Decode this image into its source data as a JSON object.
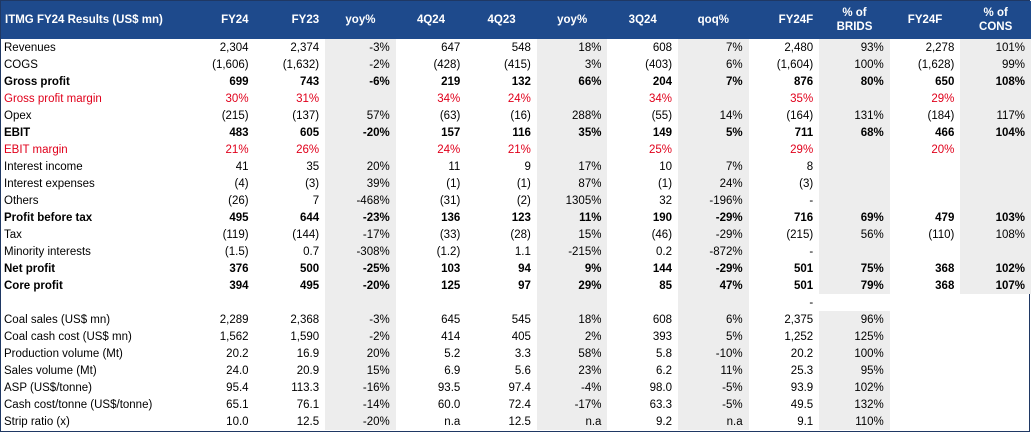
{
  "header": {
    "title": "ITMG FY24 Results (US$ mn)",
    "columns": [
      "FY24",
      "FY23",
      "yoy%",
      "4Q24",
      "4Q23",
      "yoy%",
      "3Q24",
      "qoq%",
      "FY24F",
      "% of BRIDS",
      "FY24F",
      "% of CONS"
    ]
  },
  "rows": [
    {
      "label": "Revenues",
      "style": "normal",
      "values": [
        "2,304",
        "2,374",
        "-3%",
        "647",
        "548",
        "18%",
        "608",
        "7%",
        "2,480",
        "93%",
        "2,278",
        "101%"
      ]
    },
    {
      "label": "COGS",
      "style": "normal",
      "values": [
        "(1,606)",
        "(1,632)",
        "-2%",
        "(428)",
        "(415)",
        "3%",
        "(403)",
        "6%",
        "(1,604)",
        "100%",
        "(1,628)",
        "99%"
      ]
    },
    {
      "label": "Gross profit",
      "style": "bold",
      "values": [
        "699",
        "743",
        "-6%",
        "219",
        "132",
        "66%",
        "204",
        "7%",
        "876",
        "80%",
        "650",
        "108%"
      ]
    },
    {
      "label": "Gross profit margin",
      "style": "red",
      "values": [
        "30%",
        "31%",
        "",
        "34%",
        "24%",
        "",
        "34%",
        "",
        "35%",
        "",
        "29%",
        ""
      ]
    },
    {
      "label": "Opex",
      "style": "normal",
      "values": [
        "(215)",
        "(137)",
        "57%",
        "(63)",
        "(16)",
        "288%",
        "(55)",
        "14%",
        "(164)",
        "131%",
        "(184)",
        "117%"
      ]
    },
    {
      "label": "EBIT",
      "style": "bold",
      "values": [
        "483",
        "605",
        "-20%",
        "157",
        "116",
        "35%",
        "149",
        "5%",
        "711",
        "68%",
        "466",
        "104%"
      ]
    },
    {
      "label": "EBIT margin",
      "style": "red",
      "values": [
        "21%",
        "26%",
        "",
        "24%",
        "21%",
        "",
        "25%",
        "",
        "29%",
        "",
        "20%",
        ""
      ]
    },
    {
      "label": "Interest income",
      "style": "normal",
      "values": [
        "41",
        "35",
        "20%",
        "11",
        "9",
        "17%",
        "10",
        "7%",
        "8",
        "",
        "",
        ""
      ]
    },
    {
      "label": "Interest expenses",
      "style": "normal",
      "values": [
        "(4)",
        "(3)",
        "39%",
        "(1)",
        "(1)",
        "87%",
        "(1)",
        "24%",
        "(3)",
        "",
        "",
        ""
      ]
    },
    {
      "label": "Others",
      "style": "normal",
      "values": [
        "(26)",
        "7",
        "-468%",
        "(31)",
        "(2)",
        "1305%",
        "32",
        "-196%",
        "-",
        "",
        "",
        ""
      ]
    },
    {
      "label": "Profit before tax",
      "style": "bold",
      "values": [
        "495",
        "644",
        "-23%",
        "136",
        "123",
        "11%",
        "190",
        "-29%",
        "716",
        "69%",
        "479",
        "103%"
      ]
    },
    {
      "label": "Tax",
      "style": "normal",
      "values": [
        "(119)",
        "(144)",
        "-17%",
        "(33)",
        "(28)",
        "15%",
        "(46)",
        "-29%",
        "(215)",
        "56%",
        "(110)",
        "108%"
      ]
    },
    {
      "label": "Minority interests",
      "style": "normal",
      "values": [
        "(1.5)",
        "0.7",
        "-308%",
        "(1.2)",
        "1.1",
        "-215%",
        "0.2",
        "-872%",
        "-",
        "",
        "",
        ""
      ]
    },
    {
      "label": "Net profit",
      "style": "bold",
      "values": [
        "376",
        "500",
        "-25%",
        "103",
        "94",
        "9%",
        "144",
        "-29%",
        "501",
        "75%",
        "368",
        "102%"
      ]
    },
    {
      "label": "Core profit",
      "style": "bold",
      "values": [
        "394",
        "495",
        "-20%",
        "125",
        "97",
        "29%",
        "85",
        "47%",
        "501",
        "79%",
        "368",
        "107%"
      ]
    },
    {
      "label": "",
      "style": "normal",
      "values": [
        "",
        "",
        "",
        "",
        "",
        "",
        "",
        "",
        "-",
        "",
        "",
        ""
      ]
    },
    {
      "label": "Coal sales (US$ mn)",
      "style": "normal",
      "values": [
        "2,289",
        "2,368",
        "-3%",
        "645",
        "545",
        "18%",
        "608",
        "6%",
        "2,375",
        "96%",
        "",
        ""
      ]
    },
    {
      "label": "Coal cash cost (US$ mn)",
      "style": "normal",
      "values": [
        "1,562",
        "1,590",
        "-2%",
        "414",
        "405",
        "2%",
        "393",
        "5%",
        "1,252",
        "125%",
        "",
        ""
      ]
    },
    {
      "label": "Production volume (Mt)",
      "style": "normal",
      "values": [
        "20.2",
        "16.9",
        "20%",
        "5.2",
        "3.3",
        "58%",
        "5.8",
        "-10%",
        "20.2",
        "100%",
        "",
        ""
      ]
    },
    {
      "label": "Sales volume (Mt)",
      "style": "normal",
      "values": [
        "24.0",
        "20.9",
        "15%",
        "6.9",
        "5.6",
        "23%",
        "6.2",
        "11%",
        "25.3",
        "95%",
        "",
        ""
      ]
    },
    {
      "label": "ASP (US$/tonne)",
      "style": "normal",
      "values": [
        "95.4",
        "113.3",
        "-16%",
        "93.5",
        "97.4",
        "-4%",
        "98.0",
        "-5%",
        "93.9",
        "102%",
        "",
        ""
      ]
    },
    {
      "label": "Cash cost/tonne (US$/tonne)",
      "style": "normal",
      "values": [
        "65.1",
        "76.1",
        "-14%",
        "60.0",
        "72.4",
        "-17%",
        "63.3",
        "-5%",
        "49.5",
        "132%",
        "",
        ""
      ]
    },
    {
      "label": "Strip ratio (x)",
      "style": "normal",
      "values": [
        "10.0",
        "12.5",
        "-20%",
        "n.a",
        "12.5",
        "n.a",
        "9.2",
        "n.a",
        "9.1",
        "110%",
        "",
        ""
      ]
    }
  ],
  "colors": {
    "header_bg": "#1e4a8c",
    "header_text": "#ffffff",
    "shade": "#ededed",
    "margin_red": "#e0001b"
  }
}
